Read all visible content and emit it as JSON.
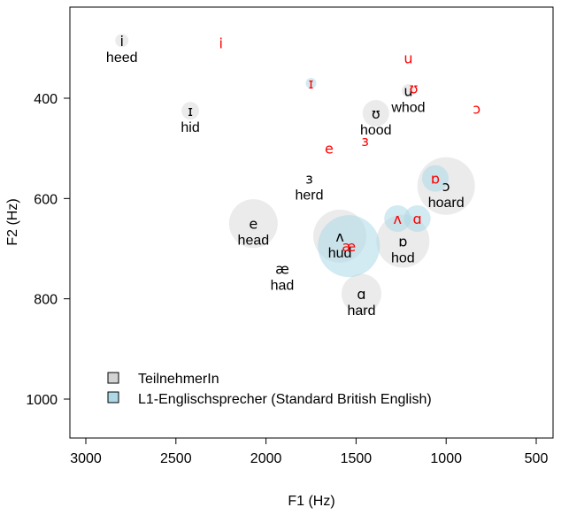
{
  "chart_data": {
    "type": "scatter",
    "xlabel": "F1 (Hz)",
    "ylabel": "F2 (Hz)",
    "x_reversed": true,
    "y_reversed": true,
    "xlim": [
      3000,
      500
    ],
    "ylim": [
      400,
      1000
    ],
    "x_ticks": [
      3000,
      2500,
      2000,
      1500,
      1000,
      500
    ],
    "y_ticks": [
      400,
      600,
      800,
      1000
    ],
    "legend": {
      "placement": "bottom-left",
      "entries": [
        {
          "label": "TeilnehmerIn",
          "color": "#d3d3d3"
        },
        {
          "label": "L1-Englischsprecher (Standard British English)",
          "color": "#add8e6"
        }
      ]
    },
    "participant_color": "#d3d3d3",
    "l1_color": "#add8e6",
    "l1_symbol_color": "#ff0000",
    "series": [
      {
        "name": "TeilnehmerIn",
        "points": [
          {
            "symbol": "i",
            "word": "heed",
            "f1": 2800,
            "f2": 285,
            "spread": 15
          },
          {
            "symbol": "ɪ",
            "word": "hid",
            "f1": 2420,
            "f2": 425,
            "spread": 20
          },
          {
            "symbol": "ʊ",
            "word": "hood",
            "f1": 1390,
            "f2": 430,
            "spread": 30
          },
          {
            "symbol": "u",
            "word": "whod",
            "f1": 1210,
            "f2": 385,
            "spread": 15
          },
          {
            "symbol": "ɜ",
            "word": "herd",
            "f1": 1760,
            "f2": 560,
            "spread": 0
          },
          {
            "symbol": "ɔ",
            "word": "hoard",
            "f1": 1000,
            "f2": 575,
            "spread": 65
          },
          {
            "symbol": "e",
            "word": "head",
            "f1": 2070,
            "f2": 650,
            "spread": 55
          },
          {
            "symbol": "ʌ",
            "word": "hud",
            "f1": 1590,
            "f2": 675,
            "spread": 60
          },
          {
            "symbol": "ɒ",
            "word": "hod",
            "f1": 1240,
            "f2": 685,
            "spread": 60
          },
          {
            "symbol": "æ",
            "word": "had",
            "f1": 1910,
            "f2": 740,
            "spread": 0
          },
          {
            "symbol": "ɑ",
            "word": "hard",
            "f1": 1470,
            "f2": 790,
            "spread": 45
          }
        ]
      },
      {
        "name": "L1-Englischsprecher (Standard British English)",
        "points": [
          {
            "symbol": "i",
            "f1": 2250,
            "f2": 290,
            "spread": 0
          },
          {
            "symbol": "u",
            "f1": 1210,
            "f2": 320,
            "spread": 0
          },
          {
            "symbol": "ɪ",
            "f1": 1750,
            "f2": 370,
            "spread": 12
          },
          {
            "symbol": "ʊ",
            "f1": 1180,
            "f2": 380,
            "spread": 0
          },
          {
            "symbol": "ɔ",
            "f1": 830,
            "f2": 420,
            "spread": 0
          },
          {
            "symbol": "e",
            "f1": 1650,
            "f2": 500,
            "spread": 0
          },
          {
            "symbol": "ɜ",
            "f1": 1450,
            "f2": 485,
            "spread": 0
          },
          {
            "symbol": "ɒ",
            "f1": 1060,
            "f2": 560,
            "spread": 30
          },
          {
            "symbol": "ʌ",
            "f1": 1270,
            "f2": 640,
            "spread": 30
          },
          {
            "symbol": "ɑ",
            "f1": 1160,
            "f2": 640,
            "spread": 30
          },
          {
            "symbol": "æ",
            "f1": 1540,
            "f2": 695,
            "spread": 70
          }
        ]
      }
    ]
  }
}
